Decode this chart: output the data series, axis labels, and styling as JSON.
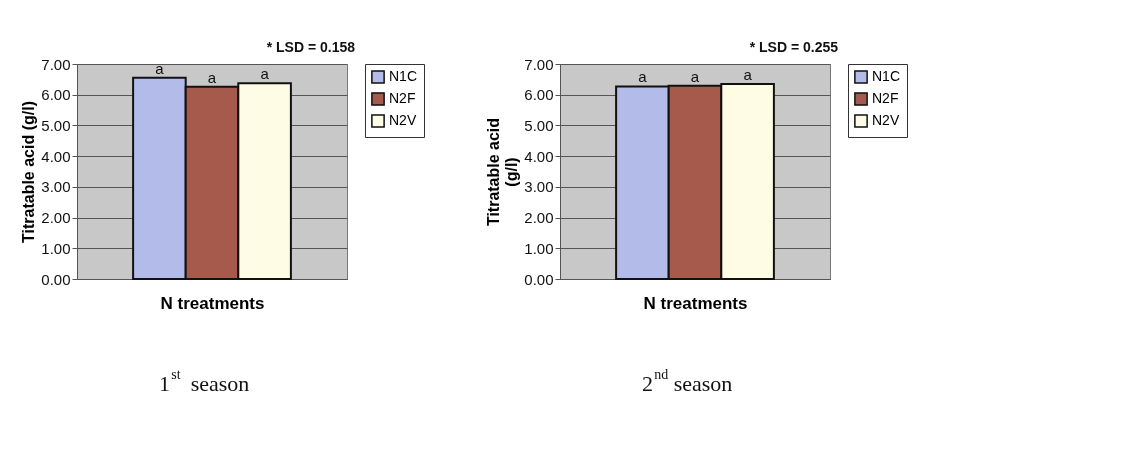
{
  "chart_data": [
    {
      "type": "bar",
      "categories": [
        null
      ],
      "xlabel": "N  treatments",
      "ylabel": "Titratable acid (g/l)",
      "ylim": [
        0,
        7
      ],
      "yticks": [
        {
          "value": 0,
          "label": "0.00"
        },
        {
          "value": 1,
          "label": "1.00"
        },
        {
          "value": 2,
          "label": "2.00"
        },
        {
          "value": 3,
          "label": "3.00"
        },
        {
          "value": 4,
          "label": "4.00"
        },
        {
          "value": 5,
          "label": "5.00"
        },
        {
          "value": 6,
          "label": "6.00"
        },
        {
          "value": 7,
          "label": "7.00"
        }
      ],
      "grid": "y",
      "legend": "right",
      "series": [
        {
          "name": "N1C",
          "color": "#b3bbe8",
          "values": [
            6.55
          ],
          "value_labels": [
            "a"
          ]
        },
        {
          "name": "N2F",
          "color": "#a65a4c",
          "values": [
            6.26
          ],
          "value_labels": [
            "a"
          ]
        },
        {
          "name": "N2V",
          "color": "#fffce6",
          "values": [
            6.37
          ],
          "value_labels": [
            "a"
          ]
        }
      ],
      "annotations": [
        "* LSD = 0.158",
        "1$^{st}$ season"
      ]
    },
    {
      "type": "bar",
      "categories": [
        null
      ],
      "xlabel": "N  treatments",
      "ylabel": "Titratable acid\n(g/l)",
      "ylim": [
        0,
        7
      ],
      "yticks": [
        {
          "value": 0,
          "label": "0.00"
        },
        {
          "value": 1,
          "label": "1.00"
        },
        {
          "value": 2,
          "label": "2.00"
        },
        {
          "value": 3,
          "label": "3.00"
        },
        {
          "value": 4,
          "label": "4.00"
        },
        {
          "value": 5,
          "label": "5.00"
        },
        {
          "value": 6,
          "label": "6.00"
        },
        {
          "value": 7,
          "label": "7.00"
        }
      ],
      "grid": "y",
      "legend": "right",
      "series": [
        {
          "name": "N1C",
          "color": "#b3bbe8",
          "values": [
            6.27
          ],
          "value_labels": [
            "a"
          ]
        },
        {
          "name": "N2F",
          "color": "#a65a4c",
          "values": [
            6.29
          ],
          "value_labels": [
            "a"
          ]
        },
        {
          "name": "N2V",
          "color": "#fffce6",
          "values": [
            6.35
          ],
          "value_labels": [
            "a"
          ]
        }
      ],
      "annotations": [
        "* LSD = 0.255",
        "2$^{nd}$ season"
      ]
    }
  ]
}
